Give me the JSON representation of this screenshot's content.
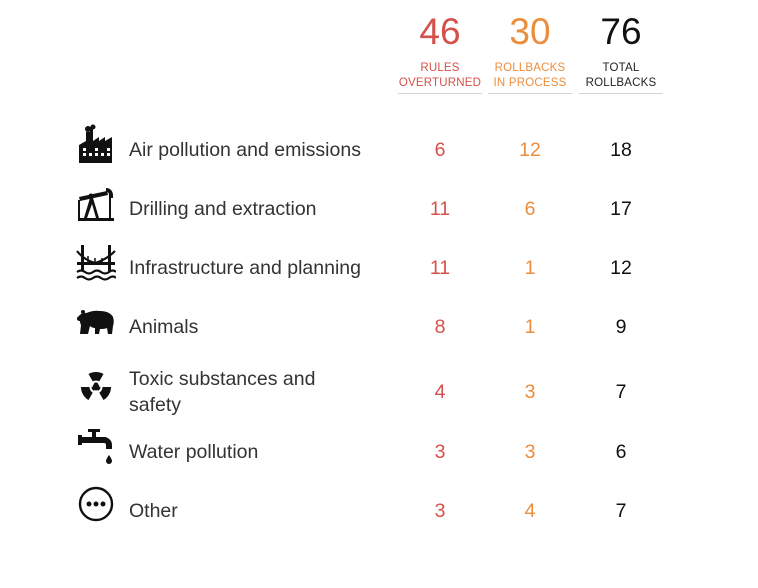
{
  "colors": {
    "overturned": "#d5504a",
    "in_process": "#ec8d3c",
    "total": "#111111",
    "text": "#333333",
    "icon": "#111111"
  },
  "header": {
    "overturned": {
      "count": "46",
      "label_line1": "RULES",
      "label_line2": "OVERTURNED"
    },
    "in_process": {
      "count": "30",
      "label_line1": "ROLLBACKS",
      "label_line2": "IN PROCESS"
    },
    "total": {
      "count": "76",
      "label_line1": "TOTAL",
      "label_line2": "ROLLBACKS"
    }
  },
  "chart_data": {
    "type": "table",
    "columns": [
      "RULES OVERTURNED",
      "ROLLBACKS IN PROCESS",
      "TOTAL ROLLBACKS"
    ],
    "totals": [
      46,
      30,
      76
    ],
    "rows": [
      {
        "category": "Air pollution and emissions",
        "icon": "factory-icon",
        "overturned": "6",
        "in_process": "12",
        "total": "18"
      },
      {
        "category": "Drilling and extraction",
        "icon": "oil-pump-icon",
        "overturned": "11",
        "in_process": "6",
        "total": "17"
      },
      {
        "category": "Infrastructure and planning",
        "icon": "bridge-icon",
        "overturned": "11",
        "in_process": "1",
        "total": "12"
      },
      {
        "category": "Animals",
        "icon": "bear-icon",
        "overturned": "8",
        "in_process": "1",
        "total": "9"
      },
      {
        "category": "Toxic substances and safety",
        "icon": "radiation-icon",
        "overturned": "4",
        "in_process": "3",
        "total": "7"
      },
      {
        "category": "Water pollution",
        "icon": "faucet-icon",
        "overturned": "3",
        "in_process": "3",
        "total": "6"
      },
      {
        "category": "Other",
        "icon": "more-icon",
        "overturned": "3",
        "in_process": "4",
        "total": "7"
      }
    ]
  }
}
